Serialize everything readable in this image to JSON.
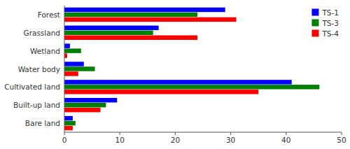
{
  "chart_data": {
    "type": "bar",
    "orientation": "horizontal",
    "categories": [
      "Bare land",
      "Built-up land",
      "Cultivated land",
      "Water body",
      "Wetland",
      "Grassland",
      "Forest"
    ],
    "series": [
      {
        "name": "TS-1",
        "color": "#0000FF",
        "values": [
          1.5,
          9.5,
          41.0,
          3.5,
          1.0,
          17.0,
          29.0
        ]
      },
      {
        "name": "TS-3",
        "color": "#008000",
        "values": [
          2.0,
          7.5,
          46.0,
          5.5,
          3.0,
          16.0,
          24.0
        ]
      },
      {
        "name": "TS-4",
        "color": "#FF0000",
        "values": [
          1.5,
          6.5,
          35.0,
          2.5,
          0.5,
          24.0,
          31.0
        ]
      }
    ],
    "xlim": [
      0,
      50
    ],
    "xticks": [
      0,
      10,
      20,
      30,
      40,
      50
    ],
    "legend": "upper right",
    "grid": false
  }
}
